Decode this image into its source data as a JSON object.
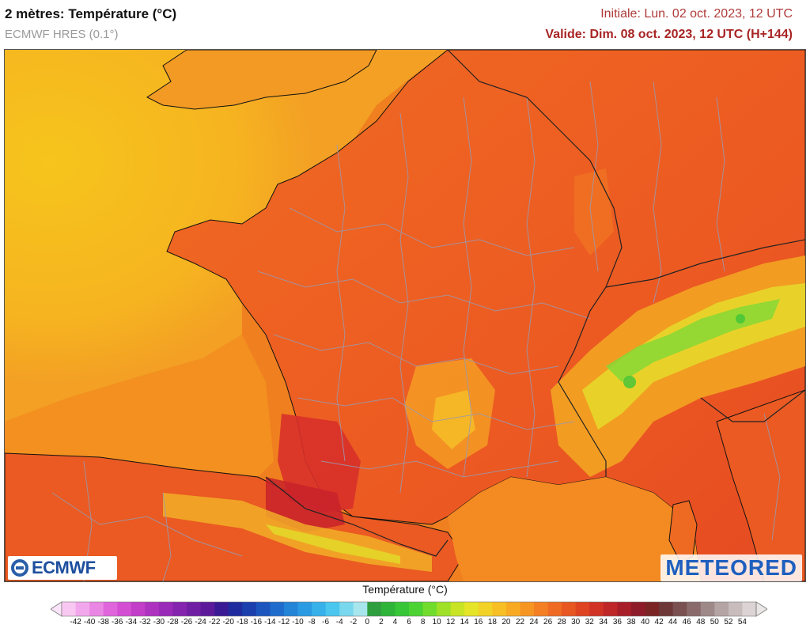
{
  "header": {
    "title": "2 mètres: Température (°C)",
    "model": "ECMWF HRES (0.1°)",
    "initial": "Initiale: Lun. 02 oct. 2023, 12 UTC",
    "valid": "Valide: Dim. 08 oct. 2023, 12 UTC (H+144)"
  },
  "logos": {
    "left": "ECMWF",
    "right": "METEORED"
  },
  "legend": {
    "title": "Température (°C)",
    "labels": [
      "-42",
      "-40",
      "-38",
      "-36",
      "-34",
      "-32",
      "-30",
      "-28",
      "-26",
      "-24",
      "-22",
      "-20",
      "-18",
      "-16",
      "-14",
      "-12",
      "-10",
      "-8",
      "-6",
      "-4",
      "-2",
      "0",
      "2",
      "4",
      "6",
      "8",
      "10",
      "12",
      "14",
      "16",
      "18",
      "20",
      "22",
      "24",
      "26",
      "28",
      "30",
      "32",
      "34",
      "36",
      "38",
      "40",
      "42",
      "44",
      "46",
      "48",
      "50",
      "52",
      "54"
    ],
    "colors": [
      "#f9c8f2",
      "#f2a7ec",
      "#ea86e4",
      "#e065dc",
      "#d44ed3",
      "#c23dc8",
      "#ae32c0",
      "#9a2ab8",
      "#8524ae",
      "#701ea4",
      "#5c1a9a",
      "#3a1a94",
      "#1f2b9e",
      "#1c3fae",
      "#1d55be",
      "#1f6ccc",
      "#2384d8",
      "#2a9be2",
      "#36b1ea",
      "#4ac6ef",
      "#7ad8ee",
      "#a8e6ee",
      "#2e9e3e",
      "#2fb43a",
      "#36c638",
      "#4cd233",
      "#72dc2c",
      "#9ee126",
      "#c8e424",
      "#e6e427",
      "#f2d226",
      "#f7bf24",
      "#f8aa22",
      "#f79522",
      "#f47f22",
      "#ef6a22",
      "#e85622",
      "#de4322",
      "#d03226",
      "#be2628",
      "#a81e28",
      "#8e1c28",
      "#7a2424",
      "#6e3838",
      "#7a5050",
      "#8a6a6a",
      "#9e8888",
      "#b4a4a4",
      "#c8bcbc",
      "#dcd4d4"
    ],
    "arrow_colors": {
      "low": "#fbe4f9",
      "high": "#ebe6e6"
    }
  }
}
